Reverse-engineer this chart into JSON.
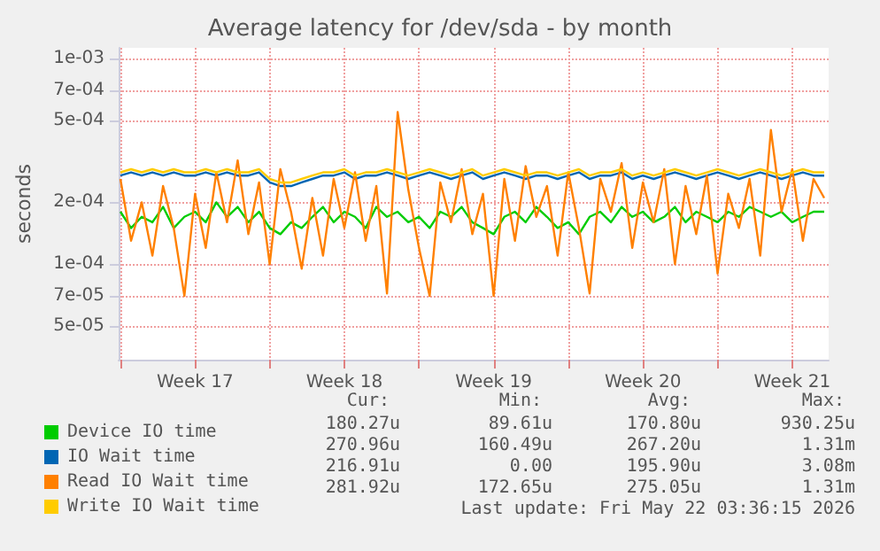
{
  "chart_data": {
    "type": "line",
    "title": "Average latency for /dev/sda - by month",
    "ylabel": "seconds",
    "log": "y",
    "grid": true,
    "legend": "bottom",
    "marker": "none",
    "line_style": "solid",
    "ylim": [
      3.43e-05,
      0.00113
    ],
    "yticks": [
      {
        "value": 5e-05,
        "label": "5e-05"
      },
      {
        "value": 7e-05,
        "label": "7e-05"
      },
      {
        "value": 0.0001,
        "label": "1e-04"
      },
      {
        "value": 0.0002,
        "label": "2e-04"
      },
      {
        "value": 0.0005,
        "label": "5e-04"
      },
      {
        "value": 0.0007,
        "label": "7e-04"
      },
      {
        "value": 0.001,
        "label": "1e-03"
      }
    ],
    "xlim": [
      "2026-04-19T22:00",
      "2026-05-23T05:00"
    ],
    "xticks": [
      {
        "value": "2026-04-20T00:00",
        "label": null
      },
      {
        "value": "2026-04-23T12:00",
        "label": "Week 17"
      },
      {
        "value": "2026-04-27T00:00",
        "label": null
      },
      {
        "value": "2026-04-30T12:00",
        "label": "Week 18"
      },
      {
        "value": "2026-05-04T00:00",
        "label": null
      },
      {
        "value": "2026-05-07T12:00",
        "label": "Week 19"
      },
      {
        "value": "2026-05-11T00:00",
        "label": null
      },
      {
        "value": "2026-05-14T12:00",
        "label": "Week 20"
      },
      {
        "value": "2026-05-18T00:00",
        "label": null
      },
      {
        "value": "2026-05-21T12:00",
        "label": "Week 21"
      }
    ],
    "x": [
      "2026-04-20T00:00",
      "2026-04-20T12:00",
      "2026-04-21T00:00",
      "2026-04-21T12:00",
      "2026-04-22T00:00",
      "2026-04-22T12:00",
      "2026-04-23T00:00",
      "2026-04-23T12:00",
      "2026-04-24T00:00",
      "2026-04-24T12:00",
      "2026-04-25T00:00",
      "2026-04-25T12:00",
      "2026-04-26T00:00",
      "2026-04-26T12:00",
      "2026-04-27T00:00",
      "2026-04-27T12:00",
      "2026-04-28T00:00",
      "2026-04-28T12:00",
      "2026-04-29T00:00",
      "2026-04-29T12:00",
      "2026-04-30T00:00",
      "2026-04-30T12:00",
      "2026-05-01T00:00",
      "2026-05-01T12:00",
      "2026-05-02T00:00",
      "2026-05-02T12:00",
      "2026-05-03T00:00",
      "2026-05-03T12:00",
      "2026-05-04T00:00",
      "2026-05-04T12:00",
      "2026-05-05T00:00",
      "2026-05-05T12:00",
      "2026-05-06T00:00",
      "2026-05-06T12:00",
      "2026-05-07T00:00",
      "2026-05-07T12:00",
      "2026-05-08T00:00",
      "2026-05-08T12:00",
      "2026-05-09T00:00",
      "2026-05-09T12:00",
      "2026-05-10T00:00",
      "2026-05-10T12:00",
      "2026-05-11T00:00",
      "2026-05-11T12:00",
      "2026-05-12T00:00",
      "2026-05-12T12:00",
      "2026-05-13T00:00",
      "2026-05-13T12:00",
      "2026-05-14T00:00",
      "2026-05-14T12:00",
      "2026-05-15T00:00",
      "2026-05-15T12:00",
      "2026-05-16T00:00",
      "2026-05-16T12:00",
      "2026-05-17T00:00",
      "2026-05-17T12:00",
      "2026-05-18T00:00",
      "2026-05-18T12:00",
      "2026-05-19T00:00",
      "2026-05-19T12:00",
      "2026-05-20T00:00",
      "2026-05-20T12:00",
      "2026-05-21T00:00",
      "2026-05-21T12:00",
      "2026-05-22T00:00",
      "2026-05-22T12:00",
      "2026-05-23T00:00"
    ],
    "series": [
      {
        "name": "Device IO time",
        "color": "#00cc00",
        "values": [
          0.00018,
          0.00015,
          0.00017,
          0.00016,
          0.00019,
          0.00015,
          0.00017,
          0.00018,
          0.00016,
          0.0002,
          0.00017,
          0.00019,
          0.00016,
          0.00018,
          0.00015,
          0.00014,
          0.00016,
          0.00015,
          0.00017,
          0.00019,
          0.00016,
          0.00018,
          0.00017,
          0.00015,
          0.00019,
          0.00017,
          0.00018,
          0.00016,
          0.00017,
          0.00015,
          0.00018,
          0.00017,
          0.00019,
          0.00016,
          0.00015,
          0.00014,
          0.00017,
          0.00018,
          0.00016,
          0.00019,
          0.00017,
          0.00015,
          0.00016,
          0.00014,
          0.00017,
          0.00018,
          0.00016,
          0.00019,
          0.00017,
          0.00018,
          0.00016,
          0.00017,
          0.00019,
          0.00016,
          0.00018,
          0.00017,
          0.00016,
          0.00018,
          0.00017,
          0.00019,
          0.00018,
          0.00017,
          0.00018,
          0.00016,
          0.00017,
          0.00018,
          0.00018
        ]
      },
      {
        "name": "IO Wait time",
        "color": "#0066b3",
        "values": [
          0.00027,
          0.00028,
          0.00027,
          0.00028,
          0.00027,
          0.00028,
          0.00027,
          0.00027,
          0.00028,
          0.00027,
          0.00028,
          0.00027,
          0.00027,
          0.00028,
          0.00025,
          0.00024,
          0.00024,
          0.00025,
          0.00026,
          0.00027,
          0.00027,
          0.00028,
          0.00026,
          0.00027,
          0.00027,
          0.00028,
          0.00027,
          0.00026,
          0.00027,
          0.00028,
          0.00027,
          0.00026,
          0.00027,
          0.00028,
          0.00026,
          0.00027,
          0.00028,
          0.00027,
          0.00026,
          0.00027,
          0.00027,
          0.00026,
          0.00027,
          0.00028,
          0.00026,
          0.00027,
          0.00027,
          0.00028,
          0.00026,
          0.00027,
          0.00026,
          0.00027,
          0.00028,
          0.00027,
          0.00026,
          0.00027,
          0.00028,
          0.00027,
          0.00026,
          0.00027,
          0.00028,
          0.00027,
          0.00026,
          0.00027,
          0.00028,
          0.00027,
          0.00027
        ]
      },
      {
        "name": "Read IO Wait time",
        "color": "#ff8000",
        "values": [
          0.00026,
          0.00013,
          0.0002,
          0.00011,
          0.00024,
          0.00015,
          7e-05,
          0.00022,
          0.00012,
          0.00028,
          0.00016,
          0.00032,
          0.00014,
          0.00025,
          0.0001,
          0.00029,
          0.00018,
          9.5e-05,
          0.00021,
          0.00011,
          0.00026,
          0.00015,
          0.00028,
          0.00013,
          0.00024,
          7.2e-05,
          0.00055,
          0.00023,
          0.00012,
          7e-05,
          0.00025,
          0.00016,
          0.00029,
          0.00014,
          0.00022,
          7e-05,
          0.00026,
          0.00013,
          0.0003,
          0.00017,
          0.00024,
          0.00011,
          0.00028,
          0.00015,
          7.2e-05,
          0.00026,
          0.00018,
          0.00031,
          0.00012,
          0.00025,
          0.00016,
          0.00029,
          0.0001,
          0.00024,
          0.00014,
          0.00027,
          9e-05,
          0.00022,
          0.00015,
          0.00026,
          0.00011,
          0.00045,
          0.00018,
          0.00029,
          0.00013,
          0.00026,
          0.00021
        ]
      },
      {
        "name": "Write IO Wait time",
        "color": "#ffcc00",
        "values": [
          0.00028,
          0.00029,
          0.00028,
          0.00029,
          0.00028,
          0.00029,
          0.00028,
          0.00028,
          0.00029,
          0.00028,
          0.00029,
          0.00028,
          0.00028,
          0.00029,
          0.00026,
          0.00025,
          0.00025,
          0.00026,
          0.00027,
          0.00028,
          0.00028,
          0.00029,
          0.00027,
          0.00028,
          0.00028,
          0.00029,
          0.00028,
          0.00027,
          0.00028,
          0.00029,
          0.00028,
          0.00027,
          0.00028,
          0.00029,
          0.00027,
          0.00028,
          0.00029,
          0.00028,
          0.00027,
          0.00028,
          0.00028,
          0.00027,
          0.00028,
          0.00029,
          0.00027,
          0.00028,
          0.00028,
          0.00029,
          0.00027,
          0.00028,
          0.00027,
          0.00028,
          0.00029,
          0.00028,
          0.00027,
          0.00028,
          0.00029,
          0.00028,
          0.00027,
          0.00028,
          0.00029,
          0.00028,
          0.00027,
          0.00028,
          0.00029,
          0.00028,
          0.00028
        ]
      }
    ],
    "annotations": [
      "Cur:",
      "Min:",
      "Avg:",
      "Max:",
      "180.27u",
      "89.61u",
      "170.80u",
      "930.25u",
      "270.96u",
      "160.49u",
      "267.20u",
      "1.31m",
      "216.91u",
      "0.00",
      "195.90u",
      "3.08m",
      "281.92u",
      "172.65u",
      "275.05u",
      "1.31m",
      "Last update: Fri May 22 03:36:15 2026"
    ]
  }
}
